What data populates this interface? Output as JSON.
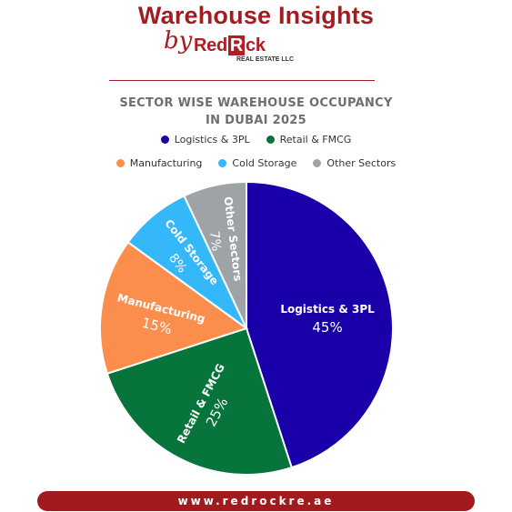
{
  "header": {
    "title": "Warehouse Insights",
    "by": "by",
    "logo_prefix": "Red",
    "logo_boxed": "R",
    "logo_suffix": "ck",
    "logo_sub": "REAL ESTATE LLC"
  },
  "subtitle": {
    "line1": "SECTOR WISE WAREHOUSE OCCUPANCY",
    "line2": "IN DUBAI 2025"
  },
  "footer": {
    "url": "www.redrockre.ae"
  },
  "chart_data": {
    "type": "pie",
    "title": "SECTOR WISE WAREHOUSE OCCUPANCY IN DUBAI 2025",
    "legend_position": "top",
    "slices": [
      {
        "name": "Logistics & 3PL",
        "value": 45,
        "label": "45%",
        "color": "#1a00a8"
      },
      {
        "name": "Retail & FMCG",
        "value": 25,
        "label": "25%",
        "color": "#07753b"
      },
      {
        "name": "Manufacturing",
        "value": 15,
        "label": "15%",
        "color": "#fb8e4c"
      },
      {
        "name": "Cold Storage",
        "value": 8,
        "label": "8%",
        "color": "#34b8fa"
      },
      {
        "name": "Other Sectors",
        "value": 7,
        "label": "7%",
        "color": "#9da3a6"
      }
    ]
  }
}
